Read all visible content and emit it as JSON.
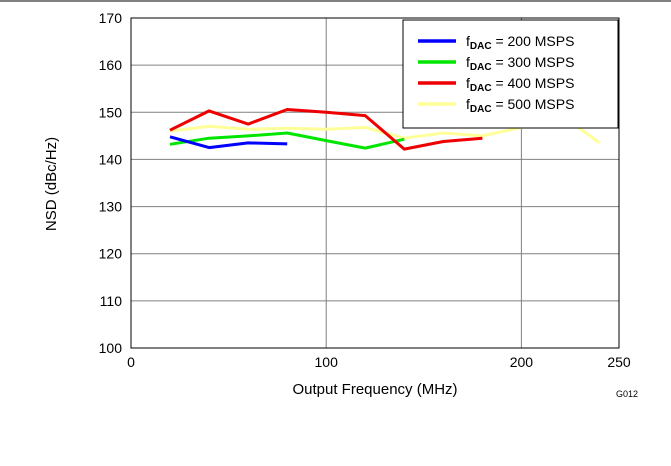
{
  "chart_data": {
    "type": "line",
    "xlabel": "Output Frequency (MHz)",
    "ylabel": "NSD (dBc/Hz)",
    "xlim": [
      0,
      250
    ],
    "ylim": [
      100,
      170
    ],
    "xticks": [
      0,
      100,
      200,
      250
    ],
    "yticks": [
      100,
      110,
      120,
      130,
      140,
      150,
      160,
      170
    ],
    "grid": true,
    "legend_position": "top-right",
    "figure_id": "G012",
    "series": [
      {
        "name_main": "f",
        "name_sub": "DAC",
        "name_rest": " = 200 MSPS",
        "color": "#0000ff",
        "x": [
          20,
          40,
          60,
          80
        ],
        "y": [
          144.8,
          142.5,
          143.5,
          143.3
        ]
      },
      {
        "name_main": "f",
        "name_sub": "DAC",
        "name_rest": " = 300 MSPS",
        "color": "#00e600",
        "x": [
          20,
          40,
          60,
          80,
          100,
          120,
          140
        ],
        "y": [
          143.2,
          144.5,
          145.0,
          145.6,
          144.0,
          142.4,
          144.3
        ]
      },
      {
        "name_main": "f",
        "name_sub": "DAC",
        "name_rest": " = 400 MSPS",
        "color": "#ee0000",
        "x": [
          20,
          40,
          60,
          80,
          100,
          120,
          140,
          160,
          180
        ],
        "y": [
          146.2,
          150.3,
          147.5,
          150.6,
          150.0,
          149.3,
          142.2,
          143.8,
          144.5
        ]
      },
      {
        "name_main": "f",
        "name_sub": "DAC",
        "name_rest": " = 500 MSPS",
        "color": "#ffff99",
        "x": [
          20,
          40,
          60,
          80,
          100,
          120,
          140,
          160,
          180,
          200,
          220,
          240
        ],
        "y": [
          146.0,
          147.0,
          146.4,
          146.6,
          146.4,
          146.8,
          144.5,
          145.6,
          145.0,
          146.8,
          149.5,
          143.5
        ]
      }
    ]
  }
}
